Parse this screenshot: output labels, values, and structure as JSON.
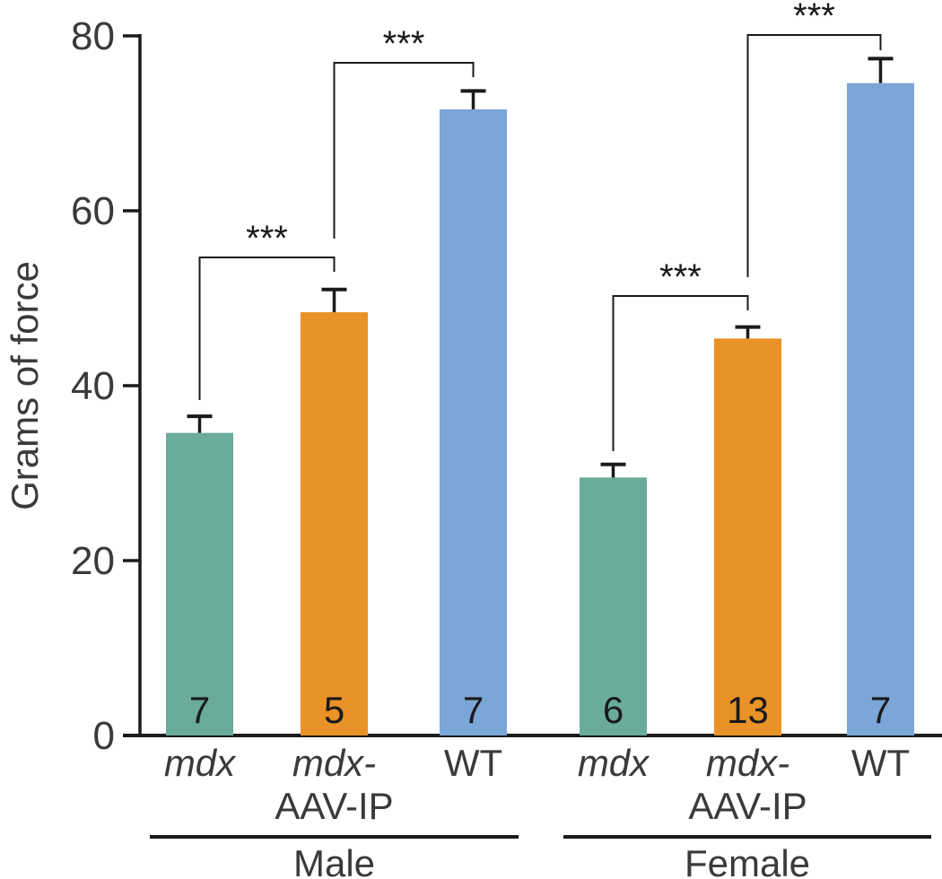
{
  "chart_data": {
    "type": "bar",
    "title": "",
    "xlabel": "",
    "ylabel": "Grams of force",
    "ylim": [
      0,
      80
    ],
    "yticks": [
      0,
      20,
      40,
      60,
      80
    ],
    "groups": [
      {
        "name": "Male",
        "categories": [
          {
            "label": [
              "mdx",
              ""
            ],
            "value": 34.6,
            "error": 1.9,
            "n": "7",
            "color": "#6aab9a"
          },
          {
            "label": [
              "mdx-",
              "AAV-IP"
            ],
            "value": 48.4,
            "error": 2.6,
            "n": "5",
            "color": "#e99227"
          },
          {
            "label": [
              "WT",
              ""
            ],
            "value": 71.6,
            "error": 2.1,
            "n": "7",
            "color": "#7ba6d8"
          }
        ]
      },
      {
        "name": "Female",
        "categories": [
          {
            "label": [
              "mdx",
              ""
            ],
            "value": 29.5,
            "error": 1.5,
            "n": "6",
            "color": "#6aab9a"
          },
          {
            "label": [
              "mdx-",
              "AAV-IP"
            ],
            "value": 45.4,
            "error": 1.3,
            "n": "13",
            "color": "#e99227"
          },
          {
            "label": [
              "WT",
              ""
            ],
            "value": 74.6,
            "error": 2.8,
            "n": "7",
            "color": "#7ba6d8"
          }
        ]
      }
    ],
    "comparisons": [
      {
        "from": 0,
        "to": 1,
        "label": "***"
      },
      {
        "from": 1,
        "to": 2,
        "label": "***"
      },
      {
        "from": 3,
        "to": 4,
        "label": "***"
      },
      {
        "from": 4,
        "to": 5,
        "label": "***"
      }
    ]
  }
}
